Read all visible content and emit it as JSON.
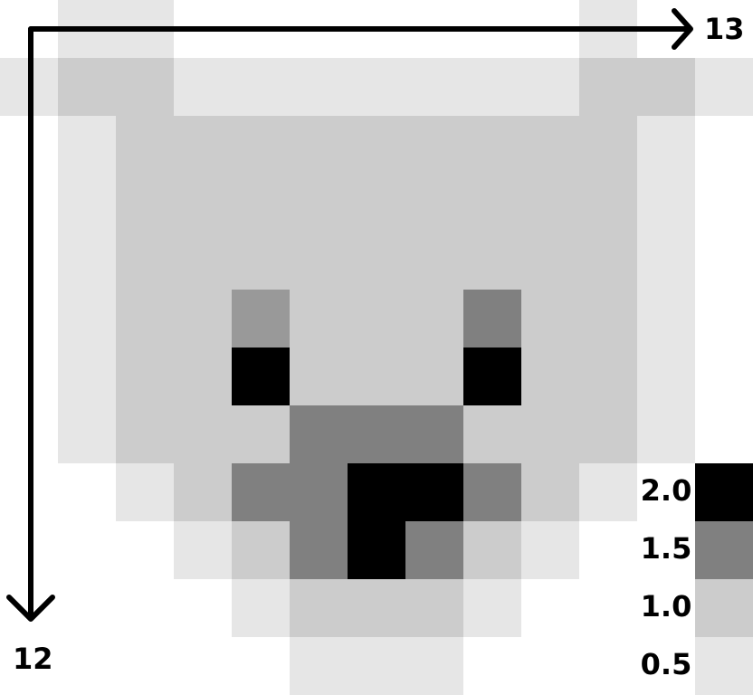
{
  "chart_data": {
    "type": "heatmap",
    "columns": 13,
    "rows": 12,
    "x_axis_label": "13",
    "y_axis_label": "12",
    "colors": {
      "0": "#ffffff",
      "0.5": "#e6e6e6",
      "1.0": "#cccccc",
      "1.5": "#808080",
      "1.75": "#999999",
      "2.0": "#000000"
    },
    "grid": [
      [
        0,
        1,
        1,
        0,
        0,
        0,
        0,
        0,
        0,
        0,
        1,
        0,
        0
      ],
      [
        1,
        2,
        2,
        1,
        1,
        1,
        1,
        1,
        1,
        1,
        2,
        2,
        1
      ],
      [
        0,
        1,
        2,
        2,
        2,
        2,
        2,
        2,
        2,
        2,
        2,
        1,
        0
      ],
      [
        0,
        1,
        2,
        2,
        2,
        2,
        2,
        2,
        2,
        2,
        2,
        1,
        0
      ],
      [
        0,
        1,
        2,
        2,
        2,
        2,
        2,
        2,
        2,
        2,
        2,
        1,
        0
      ],
      [
        0,
        1,
        2,
        2,
        3.5,
        2,
        2,
        2,
        3,
        2,
        2,
        1,
        0
      ],
      [
        0,
        1,
        2,
        2,
        4,
        2,
        2,
        2,
        4,
        2,
        2,
        1,
        0
      ],
      [
        0,
        1,
        2,
        2,
        2,
        3,
        3,
        3,
        2,
        2,
        2,
        1,
        0
      ],
      [
        0,
        0,
        1,
        2,
        3,
        3,
        4,
        4,
        3,
        2,
        1,
        0,
        0
      ],
      [
        0,
        0,
        0,
        1,
        2,
        3,
        4,
        3,
        2,
        1,
        0,
        0,
        0
      ],
      [
        0,
        0,
        0,
        0,
        1,
        2,
        2,
        2,
        1,
        0,
        0,
        0,
        0
      ],
      [
        0,
        0,
        0,
        0,
        0,
        1,
        1,
        1,
        0,
        0,
        0,
        0,
        0
      ]
    ],
    "legend": [
      {
        "label": "2.0",
        "color": "#000000"
      },
      {
        "label": "1.5",
        "color": "#808080"
      },
      {
        "label": "1.0",
        "color": "#cccccc"
      },
      {
        "label": "0.5",
        "color": "#e6e6e6"
      }
    ]
  }
}
